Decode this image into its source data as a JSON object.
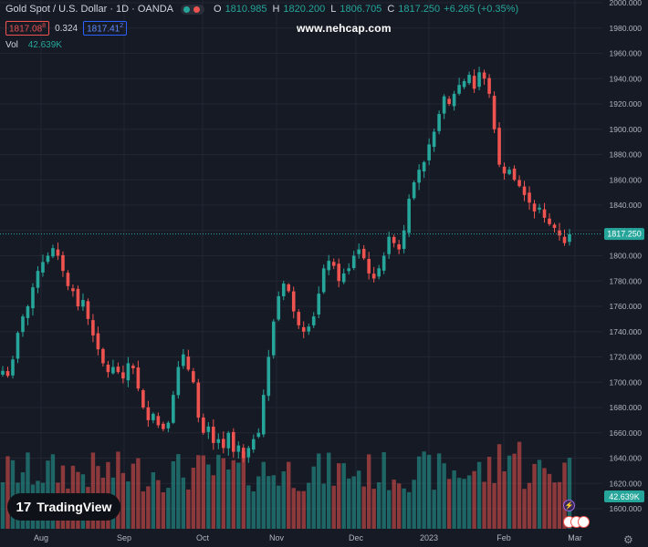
{
  "header": {
    "symbol": "Gold Spot / U.S. Dollar · 1D · OANDA",
    "o_label": "O",
    "o_value": "1810.985",
    "h_label": "H",
    "h_value": "1820.200",
    "l_label": "L",
    "l_value": "1806.705",
    "c_label": "C",
    "c_value": "1817.250",
    "change": "+6.265 (+0.35%)"
  },
  "quote": {
    "bid": "1817.08",
    "bid_sup": "8",
    "spread": "0.324",
    "ask": "1817.41",
    "ask_sup": "2"
  },
  "volume": {
    "label": "Vol",
    "value": "42.639K"
  },
  "watermark": "www.nehcap.com",
  "logo": {
    "mark": "17",
    "text": "TradingView"
  },
  "colors": {
    "up": "#26a69a",
    "down": "#ef5350",
    "background": "#161a25",
    "grid": "#232632",
    "price_line": "#26a69a"
  },
  "icons": {
    "settings": "gear-icon",
    "events": [
      "lightning-icon",
      "us-flag-icon"
    ]
  },
  "chart_data": {
    "type": "candlestick",
    "y_axis": {
      "ticks": [
        "2000.000",
        "1980.000",
        "1960.000",
        "1940.000",
        "1920.000",
        "1900.000",
        "1880.000",
        "1860.000",
        "1840.000",
        "1820.000",
        "1800.000",
        "1780.000",
        "1760.000",
        "1740.000",
        "1720.000",
        "1700.000",
        "1680.000",
        "1660.000",
        "1640.000",
        "1620.000",
        "1600.000"
      ],
      "range": [
        1592,
        2002
      ]
    },
    "x_axis": {
      "ticks": [
        "Aug",
        "Sep",
        "Oct",
        "Nov",
        "Dec",
        "2023",
        "Feb",
        "Mar"
      ]
    },
    "last_price_label": "1817.250",
    "last_volume_label": "42.639K",
    "close_path": [
      1709,
      1705,
      1718,
      1739,
      1752,
      1760,
      1775,
      1788,
      1795,
      1800,
      1806,
      1800,
      1788,
      1776,
      1772,
      1760,
      1765,
      1750,
      1737,
      1726,
      1715,
      1708,
      1712,
      1708,
      1703,
      1715,
      1711,
      1695,
      1680,
      1670,
      1675,
      1666,
      1663,
      1668,
      1690,
      1712,
      1722,
      1710,
      1700,
      1672,
      1660,
      1665,
      1652,
      1655,
      1648,
      1660,
      1645,
      1650,
      1640,
      1648,
      1655,
      1660,
      1690,
      1720,
      1748,
      1768,
      1778,
      1772,
      1756,
      1745,
      1740,
      1744,
      1752,
      1770,
      1790,
      1796,
      1792,
      1780,
      1786,
      1790,
      1800,
      1805,
      1798,
      1786,
      1782,
      1790,
      1800,
      1815,
      1810,
      1805,
      1820,
      1845,
      1858,
      1868,
      1874,
      1888,
      1898,
      1912,
      1926,
      1920,
      1928,
      1935,
      1938,
      1943,
      1932,
      1945,
      1940,
      1928,
      1900,
      1872,
      1865,
      1868,
      1860,
      1855,
      1848,
      1842,
      1835,
      1838,
      1830,
      1825,
      1822,
      1816,
      1810,
      1817
    ],
    "volume_range": [
      0,
      100
    ]
  }
}
